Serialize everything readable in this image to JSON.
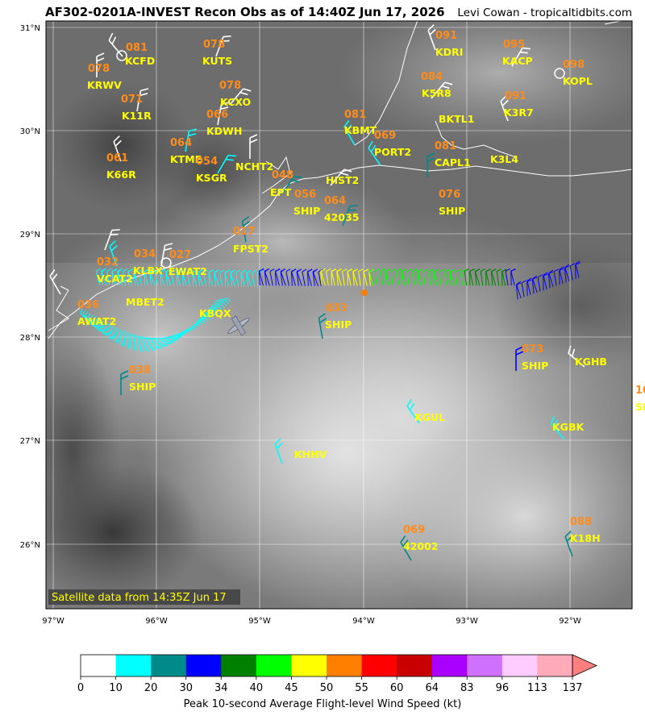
{
  "header": {
    "title": "AF302-0201A-INVEST Recon Obs as of 14:40Z Jun 17, 2026",
    "credit": "Levi Cowan - tropicaltidbits.com"
  },
  "satellite_note": "Satellite data from 14:35Z Jun 17",
  "axes": {
    "lat_ticks": [
      "31°N",
      "30°N",
      "29°N",
      "28°N",
      "27°N",
      "26°N"
    ],
    "lon_ticks": [
      "97°W",
      "96°W",
      "95°W",
      "94°W",
      "93°W",
      "92°W"
    ]
  },
  "colorbar": {
    "label": "Peak 10-second Average Flight-level Wind Speed (kt)",
    "ticks": [
      "0",
      "10",
      "20",
      "30",
      "34",
      "40",
      "45",
      "50",
      "55",
      "60",
      "64",
      "83",
      "96",
      "113",
      "137"
    ],
    "colors": [
      "#ffffff",
      "#00ffff",
      "#008b8b",
      "#0000ff",
      "#008000",
      "#00ff00",
      "#ffff00",
      "#ff8000",
      "#ff0000",
      "#c80000",
      "#aa00ff",
      "#d070ff",
      "#ffccff",
      "#ffaabb"
    ],
    "arrow_color": "#ff7f7f"
  },
  "stations": [
    {
      "id": "KCFD",
      "value": "081",
      "vcolor": "#ff8c1a"
    },
    {
      "id": "KUTS",
      "value": "078",
      "vcolor": "#ff8c1a"
    },
    {
      "id": "KDRI",
      "value": "091",
      "vcolor": "#ff8c1a"
    },
    {
      "id": "KACP",
      "value": "095",
      "vcolor": "#ff8c1a"
    },
    {
      "id": "KOPL",
      "value": "098",
      "vcolor": "#ff8c1a"
    },
    {
      "id": "KRWV",
      "value": "078",
      "vcolor": "#ff8c1a"
    },
    {
      "id": "KCXO",
      "value": "078",
      "vcolor": "#ff8c1a"
    },
    {
      "id": "K5R8",
      "value": "084",
      "vcolor": "#ff8c1a"
    },
    {
      "id": "K11R",
      "value": "071",
      "vcolor": "#ff8c1a"
    },
    {
      "id": "KDWH",
      "value": "066",
      "vcolor": "#ff8c1a"
    },
    {
      "id": "BKTL1",
      "value": "",
      "vcolor": "#ff8c1a"
    },
    {
      "id": "K3R7",
      "value": "091",
      "vcolor": "#ff8c1a"
    },
    {
      "id": "KBMT",
      "value": "081",
      "vcolor": "#ff8c1a"
    },
    {
      "id": "PORT2",
      "value": "069",
      "vcolor": "#ff8c1a"
    },
    {
      "id": "KTME",
      "value": "064",
      "vcolor": "#ff8c1a"
    },
    {
      "id": "K66R",
      "value": "061",
      "vcolor": "#ff8c1a"
    },
    {
      "id": "KSGR",
      "value": "054",
      "vcolor": "#ff8c1a"
    },
    {
      "id": "NCHT2",
      "value": "",
      "vcolor": "#ff8c1a"
    },
    {
      "id": "CAPL1",
      "value": "081",
      "vcolor": "#ff8c1a"
    },
    {
      "id": "K3L4",
      "value": "",
      "vcolor": "#ff8c1a"
    },
    {
      "id": "HIST2",
      "value": "",
      "vcolor": "#ff8c1a"
    },
    {
      "id": "EPT",
      "value": "048",
      "vcolor": "#ff8c1a"
    },
    {
      "id": "SHIP",
      "value": "056",
      "vcolor": "#ff8c1a"
    },
    {
      "id": "42035",
      "value": "064",
      "vcolor": "#ff8c1a"
    },
    {
      "id": "SHIP",
      "value": "076",
      "vcolor": "#ff8c1a"
    },
    {
      "id": "FPST2",
      "value": "017",
      "vcolor": "#ff8c1a"
    },
    {
      "id": "VCAT2",
      "value": "032",
      "vcolor": "#ff8c1a"
    },
    {
      "id": "KLBX",
      "value": "034",
      "vcolor": "#ff8c1a"
    },
    {
      "id": "EWAT2",
      "value": "027",
      "vcolor": "#ff8c1a"
    },
    {
      "id": "MBET2",
      "value": "",
      "vcolor": "#ff8c1a"
    },
    {
      "id": "AWAT2",
      "value": "036",
      "vcolor": "#ff8c1a"
    },
    {
      "id": "KBQX",
      "value": "",
      "vcolor": "#ff8c1a"
    },
    {
      "id": "SHIP",
      "value": "033",
      "vcolor": "#ff8c1a"
    },
    {
      "id": "SHIP",
      "value": "073",
      "vcolor": "#ff8c1a"
    },
    {
      "id": "KGHB",
      "value": "",
      "vcolor": "#ff8c1a"
    },
    {
      "id": "SHIP",
      "value": "038",
      "vcolor": "#ff8c1a"
    },
    {
      "id": "KGUL",
      "value": "",
      "vcolor": "#ff8c1a"
    },
    {
      "id": "KGBK",
      "value": "",
      "vcolor": "#ff8c1a"
    },
    {
      "id": "KHHV",
      "value": "",
      "vcolor": "#ff8c1a"
    },
    {
      "id": "42002",
      "value": "069",
      "vcolor": "#ff8c1a"
    },
    {
      "id": "K18H",
      "value": "088",
      "vcolor": "#ff8c1a"
    },
    {
      "id": "SH",
      "value": "10",
      "vcolor": "#ff8c1a"
    }
  ],
  "flight_track": {
    "segments": [
      {
        "lon_from": -96.55,
        "lon_to": -95.0,
        "speed_class": "10-20"
      },
      {
        "lon_from": -95.0,
        "lon_to": -94.4,
        "speed_class": "30-34"
      },
      {
        "lon_from": -94.4,
        "lon_to": -93.9,
        "speed_class": "45-55"
      },
      {
        "lon_from": -93.9,
        "lon_to": -93.0,
        "speed_class": "40-45"
      },
      {
        "lon_from": -93.0,
        "lon_to": -92.6,
        "speed_class": "34-40"
      },
      {
        "lon_from": -92.6,
        "lon_to": -91.9,
        "speed_class": "30-34"
      }
    ]
  }
}
